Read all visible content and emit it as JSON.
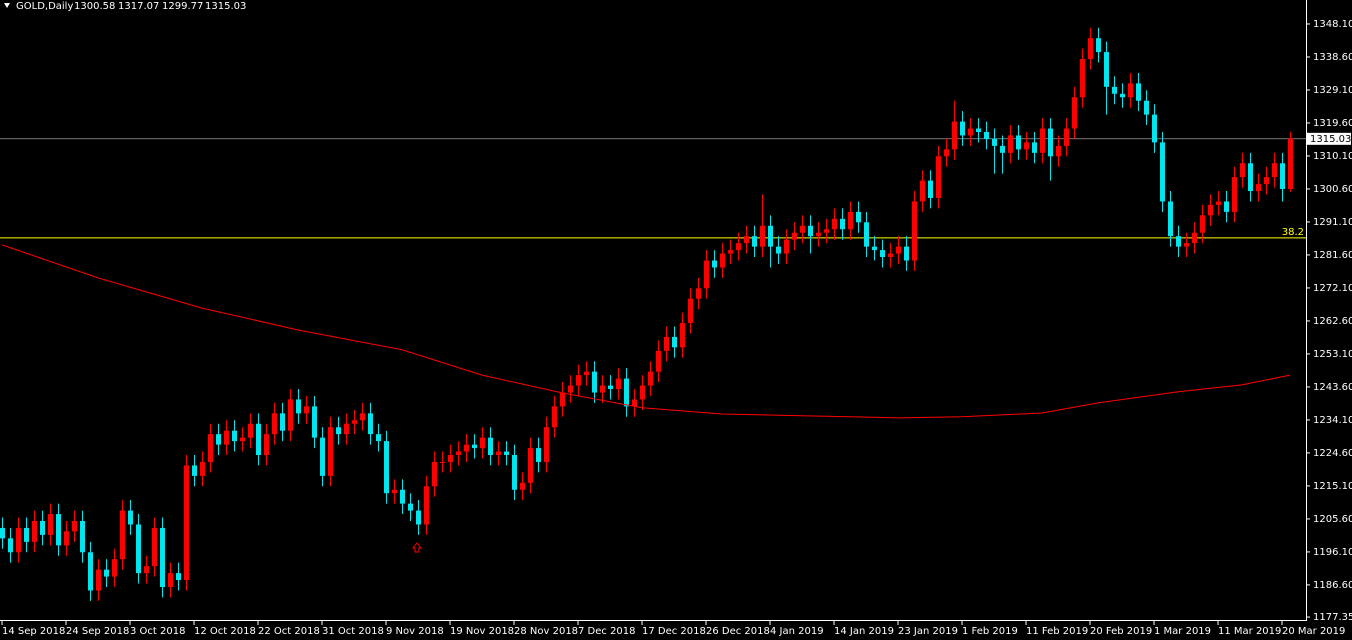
{
  "chart_data": {
    "type": "candlestick",
    "symbol": "GOLD,Daily",
    "up_color": "#ff0000",
    "down_color": "#00e5ee",
    "open": [
      1203,
      1200,
      1196,
      1203,
      1199,
      1205,
      1201,
      1207,
      1198,
      1202,
      1205,
      1196,
      1185,
      1191,
      1189,
      1194,
      1208,
      1204,
      1190,
      1192,
      1203,
      1186,
      1190,
      1188,
      1221,
      1218,
      1222,
      1230,
      1227,
      1231,
      1228,
      1229,
      1233,
      1224,
      1230,
      1236,
      1231,
      1240,
      1236,
      1238,
      1229,
      1218,
      1232,
      1230,
      1233,
      1234,
      1236,
      1230,
      1228,
      1213,
      1214,
      1210,
      1208,
      1204,
      1215,
      1222,
      1222,
      1224,
      1225,
      1227,
      1226,
      1229,
      1224,
      1225,
      1224,
      1214,
      1216,
      1226,
      1222,
      1232,
      1238,
      1242,
      1244,
      1247,
      1248,
      1242,
      1244,
      1243,
      1246,
      1238,
      1240,
      1244,
      1248,
      1254,
      1258,
      1255,
      1262,
      1269,
      1272,
      1280,
      1278,
      1282,
      1283,
      1285,
      1287,
      1284,
      1290,
      1284,
      1282,
      1286,
      1288,
      1290,
      1287,
      1288,
      1289,
      1292,
      1289,
      1294,
      1291,
      1284,
      1283,
      1281,
      1282,
      1284,
      1280,
      1297,
      1303,
      1298,
      1310,
      1312,
      1320,
      1316,
      1318,
      1317,
      1315,
      1313,
      1311,
      1316,
      1312,
      1314,
      1311,
      1318,
      1310,
      1313,
      1318,
      1327,
      1338,
      1344,
      1340,
      1330,
      1328,
      1327,
      1331,
      1326,
      1322,
      1314,
      1297,
      1287,
      1284,
      1285,
      1288,
      1293,
      1296,
      1297,
      1294,
      1304,
      1308,
      1300,
      1302,
      1304,
      1308,
      1300.58
    ],
    "high": [
      1206,
      1203,
      1206,
      1206,
      1208,
      1208,
      1210,
      1210,
      1205,
      1208,
      1208,
      1199,
      1194,
      1194,
      1197,
      1211,
      1211,
      1207,
      1195,
      1206,
      1206,
      1193,
      1193,
      1224,
      1224,
      1225,
      1233,
      1233,
      1234,
      1234,
      1232,
      1236,
      1236,
      1233,
      1239,
      1239,
      1243,
      1243,
      1241,
      1241,
      1232,
      1235,
      1235,
      1236,
      1237,
      1239,
      1239,
      1233,
      1231,
      1217,
      1217,
      1213,
      1211,
      1218,
      1225,
      1225,
      1227,
      1228,
      1230,
      1230,
      1232,
      1232,
      1228,
      1228,
      1227,
      1219,
      1229,
      1229,
      1235,
      1241,
      1245,
      1247,
      1250,
      1251,
      1251,
      1247,
      1247,
      1249,
      1249,
      1243,
      1247,
      1251,
      1257,
      1261,
      1261,
      1265,
      1272,
      1275,
      1283,
      1283,
      1285,
      1286,
      1288,
      1290,
      1290,
      1299,
      1293,
      1287,
      1289,
      1291,
      1293,
      1293,
      1291,
      1292,
      1295,
      1295,
      1297,
      1297,
      1294,
      1287,
      1286,
      1285,
      1287,
      1287,
      1300,
      1306,
      1306,
      1313,
      1315,
      1326,
      1323,
      1321,
      1321,
      1320,
      1318,
      1316,
      1319,
      1319,
      1317,
      1317,
      1321,
      1321,
      1316,
      1321,
      1330,
      1341,
      1347,
      1347,
      1343,
      1333,
      1331,
      1334,
      1334,
      1329,
      1325,
      1317,
      1300,
      1290,
      1288,
      1291,
      1296,
      1299,
      1300,
      1300,
      1307,
      1311,
      1311,
      1305,
      1307,
      1311,
      1311,
      1317.07
    ],
    "low": [
      1197,
      1193,
      1193,
      1196,
      1196,
      1198,
      1198,
      1195,
      1195,
      1199,
      1193,
      1182,
      1182,
      1186,
      1186,
      1191,
      1201,
      1187,
      1187,
      1189,
      1183,
      1183,
      1185,
      1185,
      1215,
      1215,
      1219,
      1224,
      1224,
      1225,
      1225,
      1226,
      1221,
      1221,
      1227,
      1228,
      1228,
      1233,
      1233,
      1226,
      1215,
      1215,
      1227,
      1227,
      1230,
      1231,
      1227,
      1225,
      1210,
      1210,
      1207,
      1205,
      1201,
      1201,
      1212,
      1219,
      1219,
      1221,
      1222,
      1223,
      1223,
      1221,
      1221,
      1221,
      1211,
      1211,
      1213,
      1219,
      1219,
      1229,
      1235,
      1239,
      1241,
      1244,
      1239,
      1239,
      1240,
      1240,
      1235,
      1235,
      1237,
      1241,
      1245,
      1251,
      1252,
      1252,
      1259,
      1266,
      1269,
      1275,
      1275,
      1279,
      1280,
      1282,
      1281,
      1281,
      1278,
      1279,
      1279,
      1283,
      1285,
      1282,
      1284,
      1285,
      1286,
      1286,
      1286,
      1288,
      1281,
      1280,
      1278,
      1278,
      1279,
      1277,
      1277,
      1294,
      1295,
      1295,
      1307,
      1309,
      1313,
      1313,
      1314,
      1312,
      1305,
      1305,
      1308,
      1309,
      1309,
      1308,
      1308,
      1303,
      1307,
      1310,
      1315,
      1324,
      1335,
      1337,
      1322,
      1325,
      1324,
      1324,
      1323,
      1319,
      1311,
      1294,
      1284,
      1281,
      1281,
      1282,
      1285,
      1290,
      1293,
      1291,
      1291,
      1301,
      1297,
      1297,
      1299,
      1301,
      1297,
      1299.77
    ],
    "close": [
      1200,
      1196,
      1203,
      1199,
      1205,
      1201,
      1207,
      1198,
      1202,
      1205,
      1196,
      1185,
      1191,
      1189,
      1194,
      1208,
      1204,
      1190,
      1192,
      1203,
      1186,
      1190,
      1188,
      1221,
      1218,
      1222,
      1230,
      1227,
      1231,
      1228,
      1229,
      1233,
      1224,
      1230,
      1236,
      1231,
      1240,
      1236,
      1238,
      1229,
      1218,
      1232,
      1230,
      1233,
      1234,
      1236,
      1230,
      1228,
      1213,
      1214,
      1210,
      1208,
      1204,
      1215,
      1222,
      1222,
      1224,
      1225,
      1227,
      1226,
      1229,
      1224,
      1225,
      1224,
      1214,
      1216,
      1226,
      1222,
      1232,
      1238,
      1242,
      1244,
      1247,
      1248,
      1242,
      1244,
      1243,
      1246,
      1238,
      1240,
      1244,
      1248,
      1254,
      1258,
      1255,
      1262,
      1269,
      1272,
      1280,
      1278,
      1282,
      1283,
      1285,
      1287,
      1284,
      1290,
      1284,
      1282,
      1286,
      1288,
      1290,
      1287,
      1288,
      1289,
      1292,
      1289,
      1294,
      1291,
      1284,
      1283,
      1281,
      1282,
      1284,
      1280,
      1297,
      1303,
      1298,
      1310,
      1312,
      1320,
      1316,
      1318,
      1317,
      1315,
      1313,
      1311,
      1316,
      1312,
      1314,
      1311,
      1318,
      1310,
      1313,
      1318,
      1327,
      1338,
      1344,
      1340,
      1330,
      1328,
      1327,
      1331,
      1326,
      1322,
      1314,
      1297,
      1287,
      1284,
      1285,
      1288,
      1293,
      1296,
      1297,
      1294,
      1304,
      1308,
      1300,
      1302,
      1304,
      1308,
      1300.58,
      1315.03
    ],
    "ma": {
      "color": "#ff0000",
      "x": [
        0,
        12,
        25,
        37,
        50,
        60,
        70,
        80,
        90,
        100,
        112,
        120,
        130,
        137,
        147,
        155,
        161
      ],
      "values": [
        1284.5,
        1275,
        1266.3,
        1260,
        1254.3,
        1247,
        1241.9,
        1237.6,
        1235.8,
        1235.3,
        1234.7,
        1235,
        1236.1,
        1239,
        1242.2,
        1244.2,
        1247
      ]
    },
    "price_line": {
      "value": 1315.03,
      "color": "#c0c0c0"
    },
    "fib_level": {
      "value": 1286.5,
      "label": "38.2",
      "color": "#ffff00"
    },
    "ylim": [
      1176.5,
      1355
    ],
    "yticks": [
      {
        "value": 1348.1,
        "label": "1348.10"
      },
      {
        "value": 1338.6,
        "label": "1338.60"
      },
      {
        "value": 1329.1,
        "label": "1329.10"
      },
      {
        "value": 1319.6,
        "label": "1319.60"
      },
      {
        "value": 1310.1,
        "label": "1310.10"
      },
      {
        "value": 1300.6,
        "label": "1300.60"
      },
      {
        "value": 1291.1,
        "label": "1291.10"
      },
      {
        "value": 1281.6,
        "label": "1281.60"
      },
      {
        "value": 1272.1,
        "label": "1272.10"
      },
      {
        "value": 1262.6,
        "label": "1262.60"
      },
      {
        "value": 1253.1,
        "label": "1253.10"
      },
      {
        "value": 1243.6,
        "label": "1243.60"
      },
      {
        "value": 1234.1,
        "label": "1234.10"
      },
      {
        "value": 1224.6,
        "label": "1224.60"
      },
      {
        "value": 1215.1,
        "label": "1215.10"
      },
      {
        "value": 1205.6,
        "label": "1205.60"
      },
      {
        "value": 1196.1,
        "label": "1196.10"
      },
      {
        "value": 1186.6,
        "label": "1186.60"
      },
      {
        "value": 1177.35,
        "label": "1177.35"
      }
    ],
    "xticks": [
      {
        "value": 0,
        "label": "14 Sep 2018"
      },
      {
        "value": 8,
        "label": "24 Sep 2018"
      },
      {
        "value": 16,
        "label": "3 Oct 2018"
      },
      {
        "value": 24,
        "label": "12 Oct 2018"
      },
      {
        "value": 32,
        "label": "22 Oct 2018"
      },
      {
        "value": 40,
        "label": "31 Oct 2018"
      },
      {
        "value": 48,
        "label": "9 Nov 2018"
      },
      {
        "value": 56,
        "label": "19 Nov 2018"
      },
      {
        "value": 64,
        "label": "28 Nov 2018"
      },
      {
        "value": 72,
        "label": "7 Dec 2018"
      },
      {
        "value": 80,
        "label": "17 Dec 2018"
      },
      {
        "value": 88,
        "label": "26 Dec 2018"
      },
      {
        "value": 96,
        "label": "4 Jan 2019"
      },
      {
        "value": 104,
        "label": "14 Jan 2019"
      },
      {
        "value": 112,
        "label": "23 Jan 2019"
      },
      {
        "value": 120,
        "label": "1 Feb 2019"
      },
      {
        "value": 128,
        "label": "11 Feb 2019"
      },
      {
        "value": 136,
        "label": "20 Feb 2019"
      },
      {
        "value": 144,
        "label": "1 Mar 2019"
      },
      {
        "value": 152,
        "label": "11 Mar 2019"
      },
      {
        "value": 160,
        "label": "20 Mar 2019"
      }
    ]
  }
}
